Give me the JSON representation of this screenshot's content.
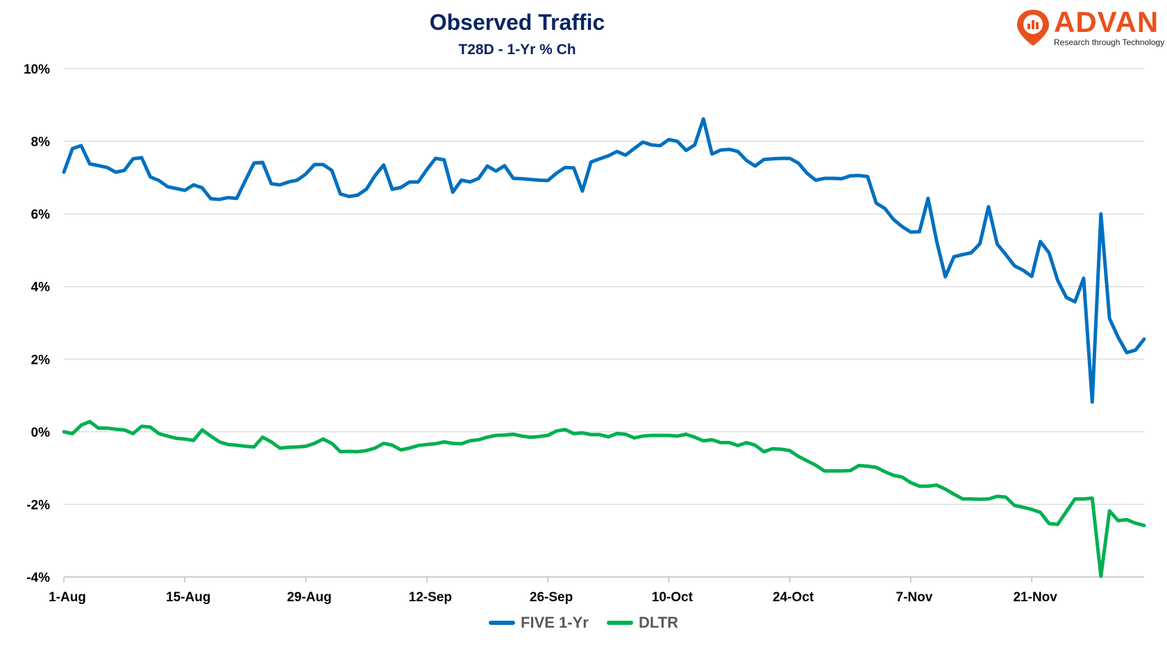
{
  "chart_data": {
    "type": "line",
    "title": "Observed Traffic",
    "subtitle": "T28D - 1-Yr % Ch",
    "xlabel": "",
    "ylabel": "",
    "ylim": [
      -4,
      10
    ],
    "yticks": [
      10,
      8,
      6,
      4,
      2,
      0,
      -2,
      -4
    ],
    "ytick_labels": [
      "10%",
      "8%",
      "6%",
      "4%",
      "2%",
      "0%",
      "-2%",
      "-4%"
    ],
    "xtick_labels": [
      "1-Aug",
      "15-Aug",
      "29-Aug",
      "12-Sep",
      "26-Sep",
      "10-Oct",
      "24-Oct",
      "7-Nov",
      "21-Nov"
    ],
    "xtick_days": [
      0,
      14,
      28,
      42,
      56,
      70,
      84,
      98,
      112
    ],
    "x_days": [
      0,
      1,
      2,
      3,
      4,
      5,
      6,
      7,
      8,
      9,
      10,
      11,
      12,
      13,
      14,
      15,
      16,
      17,
      18,
      19,
      20,
      21,
      22,
      23,
      24,
      25,
      26,
      27,
      28,
      29,
      30,
      31,
      32,
      33,
      34,
      35,
      36,
      37,
      38,
      39,
      40,
      41,
      42,
      43,
      44,
      45,
      46,
      47,
      48,
      49,
      50,
      51,
      52,
      53,
      54,
      55,
      56,
      57,
      58,
      59,
      60,
      61,
      62,
      63,
      64,
      65,
      66,
      67,
      68,
      69,
      70,
      71,
      72,
      73,
      74,
      75,
      76,
      77,
      78,
      79,
      80,
      81,
      82,
      83,
      84,
      85,
      86,
      87,
      88,
      89,
      90,
      91,
      92,
      93,
      94,
      95,
      96,
      97,
      98,
      99,
      100,
      101,
      102,
      103,
      104,
      105,
      106,
      107,
      108,
      109,
      110,
      111,
      112,
      113,
      114,
      115,
      116,
      117,
      118,
      119,
      120,
      121,
      122,
      123,
      124,
      125
    ],
    "grid": true,
    "legend_position": "bottom-center",
    "series": [
      {
        "name": "FIVE 1-Yr",
        "color": "#0070c0",
        "values": [
          7.15,
          7.8,
          7.88,
          7.38,
          7.33,
          7.28,
          7.15,
          7.2,
          7.52,
          7.55,
          7.02,
          6.92,
          6.75,
          6.7,
          6.65,
          6.8,
          6.72,
          6.42,
          6.4,
          6.45,
          6.43,
          6.92,
          7.4,
          7.42,
          6.83,
          6.8,
          6.88,
          6.93,
          7.1,
          7.36,
          7.36,
          7.2,
          6.55,
          6.48,
          6.52,
          6.68,
          7.05,
          7.35,
          6.68,
          6.73,
          6.88,
          6.88,
          7.22,
          7.53,
          7.49,
          6.6,
          6.93,
          6.88,
          6.98,
          7.32,
          7.18,
          7.33,
          6.98,
          6.97,
          6.95,
          6.93,
          6.92,
          7.12,
          7.28,
          7.27,
          6.63,
          7.43,
          7.52,
          7.6,
          7.72,
          7.62,
          7.8,
          7.98,
          7.9,
          7.88,
          8.05,
          8.0,
          7.75,
          7.9,
          8.62,
          7.65,
          7.76,
          7.78,
          7.72,
          7.47,
          7.32,
          7.5,
          7.52,
          7.53,
          7.53,
          7.4,
          7.12,
          6.93,
          6.98,
          6.98,
          6.97,
          7.05,
          7.06,
          7.03,
          6.3,
          6.15,
          5.85,
          5.65,
          5.5,
          5.51,
          6.43,
          5.25,
          4.27,
          4.82,
          4.88,
          4.93,
          5.18,
          6.2,
          5.17,
          4.88,
          4.57,
          4.45,
          4.28,
          5.24,
          4.93,
          4.17,
          3.7,
          3.58,
          4.23,
          0.82,
          6.0,
          3.12,
          2.6,
          2.18,
          2.25,
          2.55
        ]
      },
      {
        "name": "DLTR",
        "color": "#00b050",
        "values": [
          0.0,
          -0.05,
          0.18,
          0.28,
          0.1,
          0.1,
          0.07,
          0.05,
          -0.05,
          0.15,
          0.13,
          -0.05,
          -0.12,
          -0.18,
          -0.2,
          -0.24,
          0.05,
          -0.12,
          -0.28,
          -0.35,
          -0.37,
          -0.4,
          -0.42,
          -0.15,
          -0.28,
          -0.45,
          -0.43,
          -0.42,
          -0.4,
          -0.32,
          -0.2,
          -0.32,
          -0.55,
          -0.54,
          -0.55,
          -0.52,
          -0.45,
          -0.32,
          -0.37,
          -0.5,
          -0.45,
          -0.38,
          -0.35,
          -0.33,
          -0.28,
          -0.32,
          -0.33,
          -0.25,
          -0.22,
          -0.15,
          -0.1,
          -0.09,
          -0.07,
          -0.12,
          -0.15,
          -0.13,
          -0.1,
          0.02,
          0.06,
          -0.05,
          -0.03,
          -0.08,
          -0.08,
          -0.14,
          -0.05,
          -0.07,
          -0.17,
          -0.12,
          -0.1,
          -0.1,
          -0.1,
          -0.12,
          -0.07,
          -0.15,
          -0.25,
          -0.22,
          -0.3,
          -0.3,
          -0.38,
          -0.3,
          -0.37,
          -0.55,
          -0.47,
          -0.48,
          -0.52,
          -0.68,
          -0.8,
          -0.92,
          -1.08,
          -1.08,
          -1.08,
          -1.07,
          -0.93,
          -0.95,
          -0.98,
          -1.1,
          -1.2,
          -1.25,
          -1.4,
          -1.5,
          -1.5,
          -1.47,
          -1.58,
          -1.72,
          -1.85,
          -1.85,
          -1.86,
          -1.85,
          -1.78,
          -1.8,
          -2.03,
          -2.08,
          -2.14,
          -2.22,
          -2.53,
          -2.55,
          -2.2,
          -1.85,
          -1.85,
          -1.83,
          -3.98,
          -2.18,
          -2.45,
          -2.42,
          -2.52,
          -2.58
        ]
      }
    ]
  },
  "logo": {
    "text": "ADVAN",
    "tagline": "Research through Technology",
    "color": "#e8511e"
  }
}
